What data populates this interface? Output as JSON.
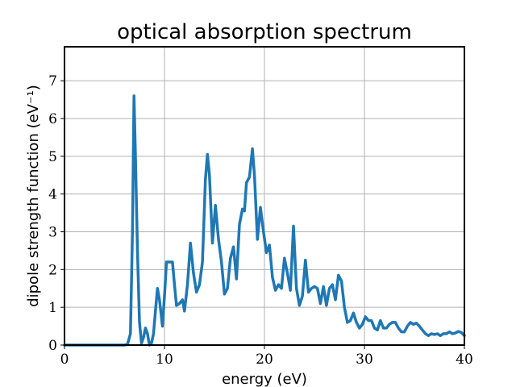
{
  "chart_data": {
    "type": "line",
    "title": "optical absorption spectrum",
    "xlabel": "energy (eV)",
    "ylabel": "dipole strength function (eV⁻¹)",
    "xlim": [
      0,
      40
    ],
    "ylim": [
      0,
      7.9
    ],
    "xticks": [
      0,
      10,
      20,
      30,
      40
    ],
    "yticks": [
      0,
      1,
      2,
      3,
      4,
      5,
      6,
      7
    ],
    "grid": true,
    "legend": "none",
    "colors": {
      "line": "#1f77b4",
      "grid": "#b0b0b0",
      "frame": "#000000"
    },
    "series": [
      {
        "x": [
          0,
          5,
          6.0,
          6.3,
          6.6,
          6.8,
          6.95,
          7.1,
          7.3,
          7.5,
          7.7,
          7.9,
          8.1,
          8.3,
          8.5,
          8.7,
          8.9,
          9.1,
          9.3,
          9.5,
          9.8,
          10.0,
          10.2,
          10.5,
          10.8,
          11.0,
          11.2,
          11.5,
          11.8,
          12.0,
          12.3,
          12.6,
          12.9,
          13.2,
          13.5,
          13.8,
          14.1,
          14.3,
          14.5,
          14.8,
          15.1,
          15.4,
          15.7,
          16.0,
          16.3,
          16.6,
          16.9,
          17.2,
          17.5,
          17.8,
          18.0,
          18.2,
          18.5,
          18.8,
          19.0,
          19.3,
          19.6,
          19.9,
          20.2,
          20.5,
          20.8,
          21.1,
          21.4,
          21.7,
          22.0,
          22.3,
          22.6,
          22.9,
          23.2,
          23.5,
          23.8,
          24.1,
          24.4,
          24.7,
          25.0,
          25.3,
          25.6,
          25.9,
          26.2,
          26.5,
          26.8,
          27.1,
          27.4,
          27.7,
          28.0,
          28.3,
          28.6,
          28.9,
          29.2,
          29.5,
          29.8,
          30.1,
          30.4,
          30.7,
          31.0,
          31.3,
          31.6,
          31.9,
          32.2,
          32.5,
          32.8,
          33.1,
          33.4,
          33.7,
          34.0,
          34.3,
          34.6,
          34.9,
          35.2,
          35.5,
          35.8,
          36.1,
          36.4,
          36.7,
          37.0,
          37.3,
          37.6,
          37.9,
          38.2,
          38.5,
          38.8,
          39.1,
          39.4,
          39.7,
          40.0
        ],
        "y": [
          0,
          0,
          0,
          0.02,
          0.3,
          3.0,
          6.6,
          5.0,
          2.5,
          0.6,
          0.05,
          0.2,
          0.45,
          0.3,
          0.0,
          0.05,
          0.3,
          0.9,
          1.5,
          1.2,
          0.5,
          1.3,
          2.2,
          2.2,
          2.2,
          1.6,
          1.05,
          1.1,
          1.2,
          0.9,
          1.6,
          2.7,
          1.9,
          1.4,
          1.6,
          2.2,
          4.4,
          5.05,
          4.5,
          2.7,
          3.7,
          2.8,
          2.2,
          1.35,
          1.5,
          2.3,
          2.6,
          1.75,
          3.2,
          3.6,
          3.55,
          4.3,
          4.45,
          5.2,
          4.5,
          2.8,
          3.65,
          3.0,
          2.45,
          2.65,
          1.8,
          1.45,
          1.6,
          1.5,
          2.3,
          1.9,
          1.45,
          3.15,
          1.5,
          1.05,
          1.3,
          2.25,
          1.4,
          1.5,
          1.55,
          1.5,
          1.1,
          1.55,
          1.05,
          1.5,
          1.6,
          1.2,
          1.85,
          1.7,
          1.0,
          0.6,
          0.65,
          0.85,
          0.6,
          0.45,
          0.55,
          0.75,
          0.65,
          0.65,
          0.45,
          0.4,
          0.65,
          0.45,
          0.45,
          0.55,
          0.6,
          0.6,
          0.45,
          0.35,
          0.35,
          0.5,
          0.6,
          0.55,
          0.58,
          0.5,
          0.4,
          0.3,
          0.25,
          0.3,
          0.28,
          0.3,
          0.25,
          0.3,
          0.3,
          0.35,
          0.3,
          0.32,
          0.36,
          0.33,
          0.25
        ]
      }
    ]
  }
}
